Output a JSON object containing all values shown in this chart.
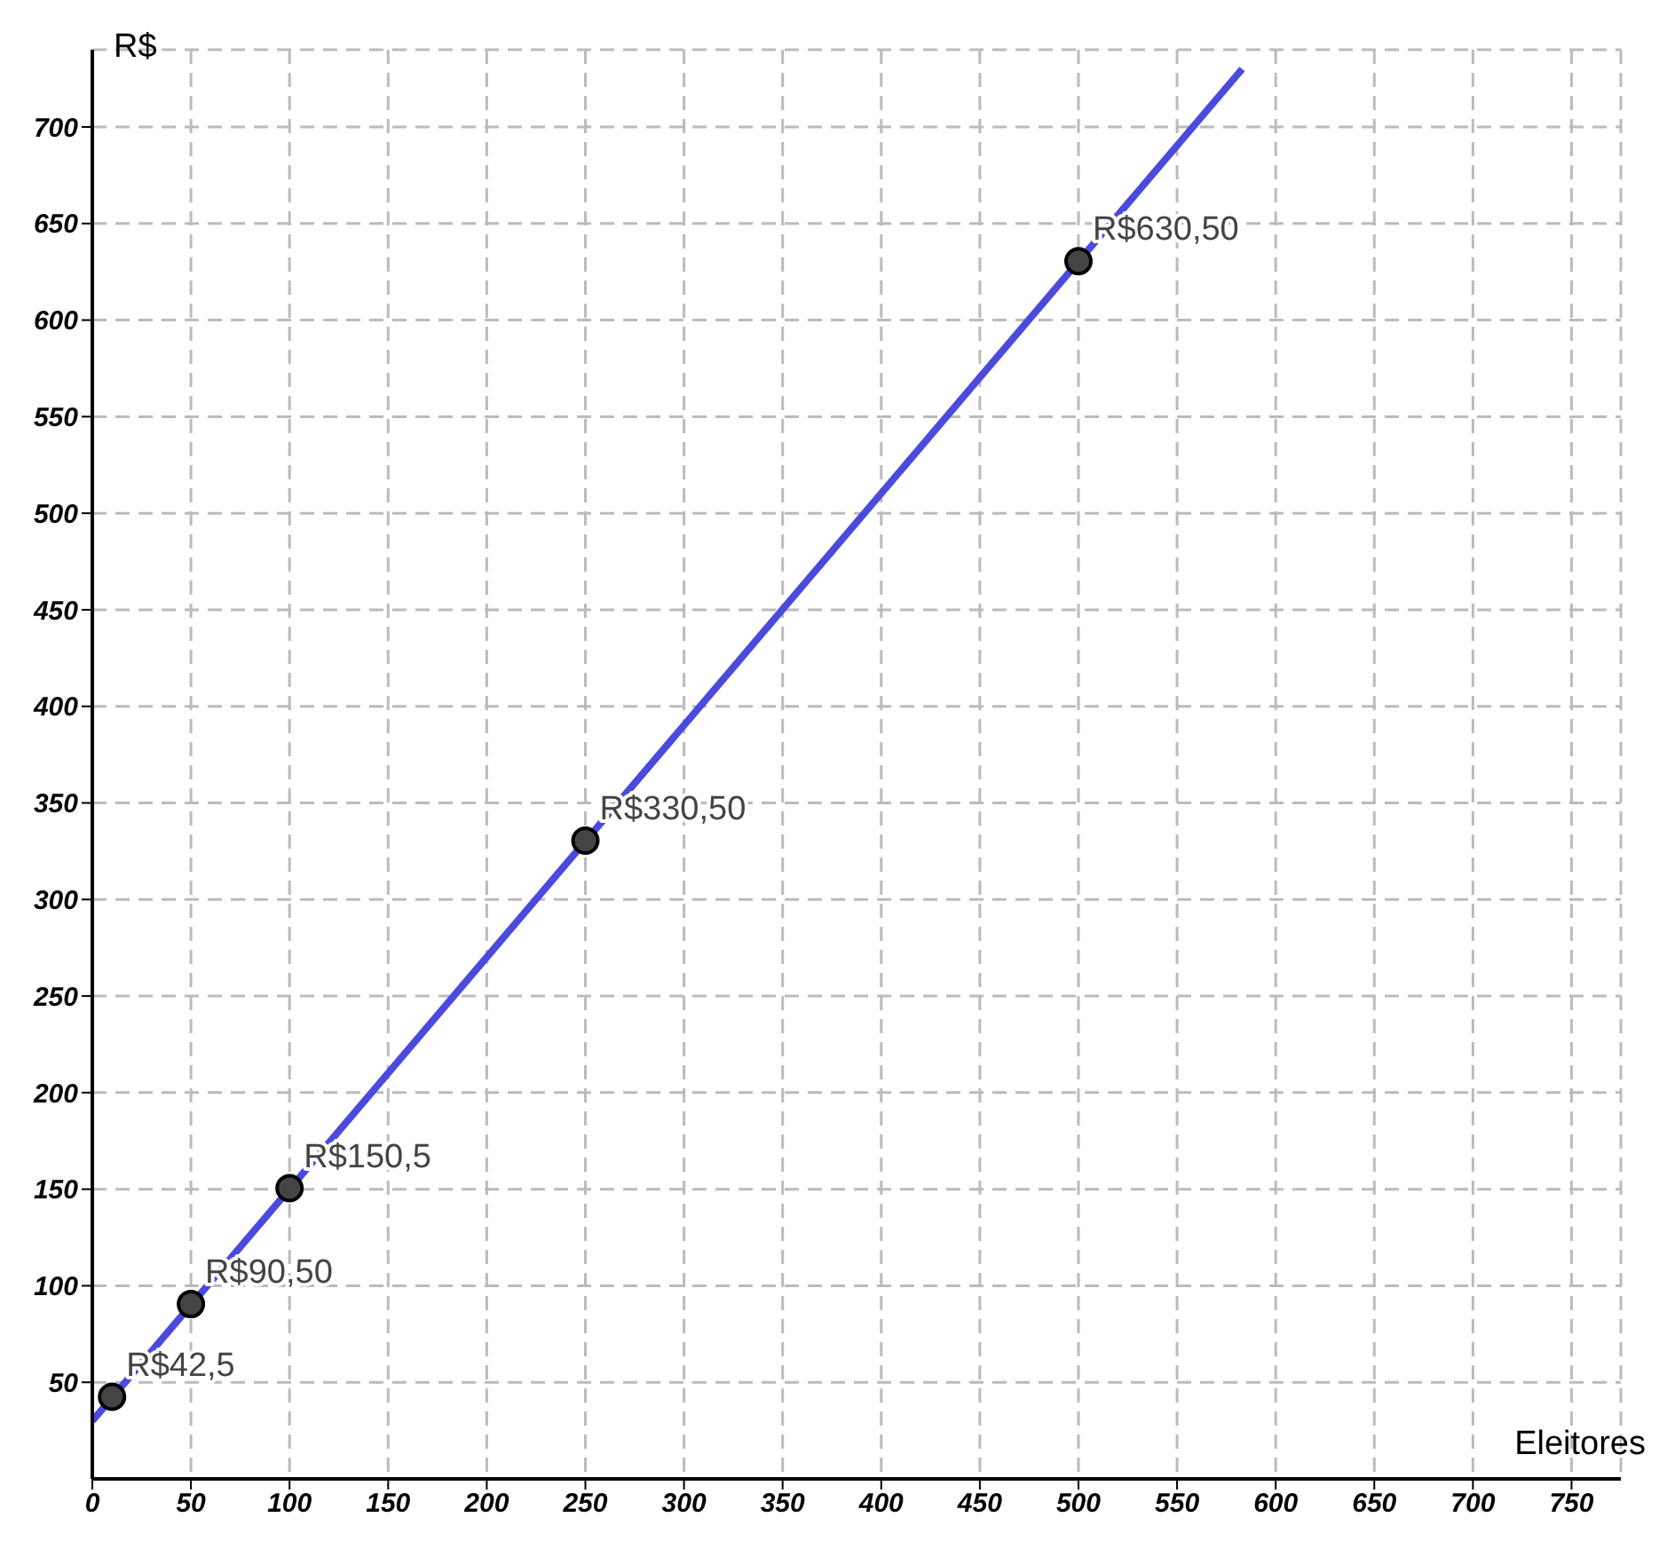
{
  "chart_data": {
    "type": "line",
    "xlabel": "Eleitores",
    "ylabel": "R$",
    "xlim": [
      0,
      775
    ],
    "ylim": [
      0,
      740
    ],
    "xticks": [
      0,
      50,
      100,
      150,
      200,
      250,
      300,
      350,
      400,
      450,
      500,
      550,
      600,
      650,
      700,
      750
    ],
    "yticks": [
      50,
      100,
      150,
      200,
      250,
      300,
      350,
      400,
      450,
      500,
      550,
      600,
      650,
      700
    ],
    "grid": true,
    "legend": false,
    "series": [
      {
        "color": "#4a4ade",
        "x": [
          0,
          583
        ],
        "values": [
          30,
          730
        ],
        "marker": "none",
        "line_style": "solid"
      },
      {
        "type": "scatter",
        "color": "#444444",
        "x": [
          10,
          50,
          100,
          250,
          500
        ],
        "values": [
          42.5,
          90.5,
          150.5,
          330.5,
          630.5
        ],
        "marker": "circle",
        "value_labels": [
          "R$42,5",
          "R$90,50",
          "R$150,5",
          "R$330,50",
          "R$630,50"
        ]
      }
    ]
  }
}
